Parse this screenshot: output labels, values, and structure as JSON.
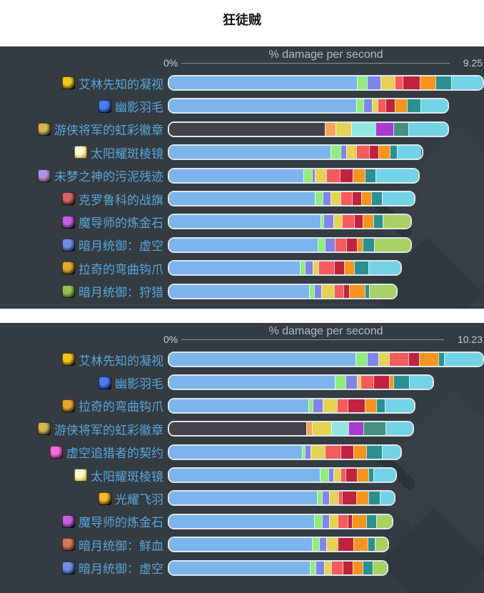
{
  "header": {
    "title": "狂徒贼"
  },
  "palette": {
    "base": "#7cb5ec",
    "gray": "#434348",
    "green": "#90ed7d",
    "peri": "#8085e9",
    "khaki": "#e4d354",
    "salmon": "#f45b5b",
    "crimson": "#c1233f",
    "orange": "#f7941d",
    "porange": "#f7a35c",
    "teal": "#2b908f",
    "sage": "#45917e",
    "cyan": "#74d2e7",
    "mint": "#91e8e1",
    "magenta": "#a83bd0",
    "ygreen": "#a8d164"
  },
  "colors": {
    "panel_bg": "#343b41",
    "label_text": "#57a5dc",
    "chart_title": "#b6bcbf",
    "axis_label": "#c6cbce",
    "axis_line": "#8b9297",
    "bar_outline": "#dde7ee",
    "page_title": "#141414"
  },
  "chart_data": [
    {
      "type": "bar",
      "orientation": "horizontal",
      "stacked": true,
      "title": "% damage per second",
      "axis_min_label": "0%",
      "axis_max_label": "9.25",
      "xlim": [
        0,
        9.25
      ],
      "categories": [
        "艾林先知的凝视",
        "幽影羽毛",
        "游侠将军的虹彩徽章",
        "太阳耀斑棱镜",
        "未梦之神的污泥残迹",
        "克罗鲁科的战旗",
        "魔导师的炼金石",
        "暗月统御：虚空",
        "拉奇的弯曲钩爪",
        "暗月统御：狩猎"
      ],
      "values": [
        9.25,
        8.23,
        8.22,
        7.46,
        7.36,
        7.25,
        7.15,
        7.14,
        6.85,
        6.73
      ],
      "icons": [
        {
          "name": "gold-eye-swirl-icon",
          "fg": "#f2c51d",
          "bg": "#17120a"
        },
        {
          "name": "blue-feather-icon",
          "fg": "#4a7df0",
          "bg": "#0a1038"
        },
        {
          "name": "gold-badge-icon",
          "fg": "#d8b84e",
          "bg": "#15191d"
        },
        {
          "name": "sun-prism-icon",
          "fg": "#fdf6cf",
          "bg": "#c8a52e"
        },
        {
          "name": "sludge-relic-icon",
          "fg": "#b292e2",
          "bg": "#3a2c14"
        },
        {
          "name": "war-banner-icon",
          "fg": "#d4656a",
          "bg": "#201012"
        },
        {
          "name": "alchemist-stone-icon",
          "fg": "#c45fe0",
          "bg": "#140b1c"
        },
        {
          "name": "darkmoon-void-card-icon",
          "fg": "#6d8fe8",
          "bg": "#0d1530"
        },
        {
          "name": "gold-hook-icon",
          "fg": "#e2a92c",
          "bg": "#1a1208"
        },
        {
          "name": "darkmoon-hunt-card-icon",
          "fg": "#97c04e",
          "bg": "#1c260e"
        }
      ],
      "bars": [
        {
          "segments": [
            [
              "base",
              59.8
            ],
            [
              "green",
              3.2
            ],
            [
              "peri",
              4.5
            ],
            [
              "khaki",
              4.5
            ],
            [
              "salmon",
              2.5
            ],
            [
              "crimson",
              5.4
            ],
            [
              "orange",
              5.0
            ],
            [
              "teal",
              5.0
            ],
            [
              "cyan",
              10.1
            ]
          ]
        },
        {
          "segments": [
            [
              "base",
              59.8
            ],
            [
              "green",
              2.3
            ],
            [
              "peri",
              2.6
            ],
            [
              "khaki",
              1.8
            ],
            [
              "salmon",
              2.7
            ],
            [
              "crimson",
              2.9
            ],
            [
              "orange",
              3.8
            ],
            [
              "teal",
              4.5
            ],
            [
              "cyan",
              8.6
            ]
          ]
        },
        {
          "segments": [
            [
              "gray",
              49.7
            ],
            [
              "porange",
              3.4
            ],
            [
              "khaki",
              5.0
            ],
            [
              "mint",
              7.9
            ],
            [
              "magenta",
              5.6
            ],
            [
              "sage",
              4.7
            ],
            [
              "cyan",
              12.6
            ]
          ]
        },
        {
          "segments": [
            [
              "base",
              51.7
            ],
            [
              "green",
              3.2
            ],
            [
              "peri",
              1.8
            ],
            [
              "khaki",
              3.2
            ],
            [
              "salmon",
              4.1
            ],
            [
              "crimson",
              2.9
            ],
            [
              "orange",
              3.6
            ],
            [
              "teal",
              2.3
            ],
            [
              "cyan",
              7.9
            ]
          ]
        },
        {
          "segments": [
            [
              "base",
              42.9
            ],
            [
              "green",
              2.7
            ],
            [
              "peri",
              0.9
            ],
            [
              "khaki",
              3.8
            ],
            [
              "salmon",
              4.3
            ],
            [
              "crimson",
              4.1
            ],
            [
              "orange",
              3.8
            ],
            [
              "teal",
              3.6
            ],
            [
              "cyan",
              13.5
            ]
          ]
        },
        {
          "segments": [
            [
              "base",
              46.7
            ],
            [
              "green",
              2.3
            ],
            [
              "peri",
              2.7
            ],
            [
              "khaki",
              3.2
            ],
            [
              "salmon",
              3.6
            ],
            [
              "crimson",
              2.9
            ],
            [
              "orange",
              3.2
            ],
            [
              "teal",
              3.4
            ],
            [
              "cyan",
              10.4
            ]
          ]
        },
        {
          "segments": [
            [
              "base",
              48.5
            ],
            [
              "green",
              0.9
            ],
            [
              "peri",
              3.2
            ],
            [
              "khaki",
              2.7
            ],
            [
              "salmon",
              3.8
            ],
            [
              "crimson",
              2.9
            ],
            [
              "orange",
              3.4
            ],
            [
              "teal",
              2.9
            ],
            [
              "ygreen",
              9.0
            ]
          ]
        },
        {
          "segments": [
            [
              "base",
              47.6
            ],
            [
              "green",
              2.3
            ],
            [
              "peri",
              3.2
            ],
            [
              "salmon",
              3.6
            ],
            [
              "crimson",
              3.4
            ],
            [
              "orange",
              1.8
            ],
            [
              "teal",
              3.6
            ],
            [
              "ygreen",
              11.7
            ]
          ]
        },
        {
          "segments": [
            [
              "base",
              41.8
            ],
            [
              "green",
              1.6
            ],
            [
              "peri",
              2.5
            ],
            [
              "khaki",
              1.8
            ],
            [
              "salmon",
              5.0
            ],
            [
              "crimson",
              3.2
            ],
            [
              "orange",
              3.4
            ],
            [
              "teal",
              4.5
            ],
            [
              "cyan",
              10.2
            ]
          ]
        },
        {
          "segments": [
            [
              "base",
              44.9
            ],
            [
              "green",
              1.4
            ],
            [
              "peri",
              2.3
            ],
            [
              "khaki",
              4.1
            ],
            [
              "salmon",
              3.2
            ],
            [
              "crimson",
              1.8
            ],
            [
              "orange",
              5.0
            ],
            [
              "teal",
              1.4
            ],
            [
              "ygreen",
              8.6
            ]
          ]
        }
      ]
    },
    {
      "type": "bar",
      "orientation": "horizontal",
      "stacked": true,
      "title": "% damage per second",
      "axis_min_label": "0%",
      "axis_max_label": "10.23",
      "xlim": [
        0,
        10.23
      ],
      "categories": [
        "艾林先知的凝视",
        "幽影羽毛",
        "拉奇的弯曲钩爪",
        "游侠将军的虹彩徽章",
        "虚空追猎者的契约",
        "太阳耀斑棱镜",
        "光耀飞羽",
        "魔导师的炼金石",
        "暗月统御：鲜血",
        "暗月统御：虚空"
      ],
      "values": [
        10.23,
        8.62,
        8.02,
        7.97,
        7.58,
        7.42,
        7.37,
        7.29,
        7.15,
        7.13
      ],
      "icons": [
        {
          "name": "gold-eye-swirl-icon",
          "fg": "#f2c51d",
          "bg": "#17120a"
        },
        {
          "name": "blue-feather-icon",
          "fg": "#4a7df0",
          "bg": "#0a1038"
        },
        {
          "name": "gold-hook-icon",
          "fg": "#e2a92c",
          "bg": "#1a1208"
        },
        {
          "name": "gold-badge-icon",
          "fg": "#d8b84e",
          "bg": "#15191d"
        },
        {
          "name": "void-pact-tome-icon",
          "fg": "#ef6fd8",
          "bg": "#471238"
        },
        {
          "name": "sun-prism-icon",
          "fg": "#fdf6cf",
          "bg": "#c8a52e"
        },
        {
          "name": "radiant-feather-icon",
          "fg": "#f4b82a",
          "bg": "#140d04"
        },
        {
          "name": "alchemist-stone-icon",
          "fg": "#c45fe0",
          "bg": "#140b1c"
        },
        {
          "name": "darkmoon-blood-card-icon",
          "fg": "#d07a5a",
          "bg": "#3a1410"
        },
        {
          "name": "darkmoon-void-card-icon",
          "fg": "#6d8fe8",
          "bg": "#0d1530"
        }
      ],
      "bars": [
        {
          "segments": [
            [
              "base",
              59.4
            ],
            [
              "green",
              3.8
            ],
            [
              "peri",
              3.6
            ],
            [
              "khaki",
              3.4
            ],
            [
              "salmon",
              6.1
            ],
            [
              "crimson",
              3.4
            ],
            [
              "orange",
              6.1
            ],
            [
              "teal",
              1.8
            ],
            [
              "cyan",
              12.4
            ]
          ]
        },
        {
          "segments": [
            [
              "base",
              53.0
            ],
            [
              "green",
              3.4
            ],
            [
              "peri",
              3.6
            ],
            [
              "khaki",
              1.1
            ],
            [
              "salmon",
              4.1
            ],
            [
              "crimson",
              5.0
            ],
            [
              "orange",
              1.4
            ],
            [
              "teal",
              5.0
            ],
            [
              "cyan",
              7.7
            ]
          ]
        },
        {
          "segments": [
            [
              "base",
              44.5
            ],
            [
              "green",
              1.4
            ],
            [
              "peri",
              3.2
            ],
            [
              "khaki",
              4.5
            ],
            [
              "salmon",
              3.6
            ],
            [
              "crimson",
              5.4
            ],
            [
              "orange",
              3.6
            ],
            [
              "teal",
              2.7
            ],
            [
              "cyan",
              9.5
            ]
          ]
        },
        {
          "segments": [
            [
              "gray",
              43.9
            ],
            [
              "porange",
              1.8
            ],
            [
              "khaki",
              6.1
            ],
            [
              "mint",
              5.6
            ],
            [
              "magenta",
              4.7
            ],
            [
              "sage",
              7.2
            ],
            [
              "cyan",
              8.6
            ]
          ]
        },
        {
          "segments": [
            [
              "base",
              42.4
            ],
            [
              "green",
              1.1
            ],
            [
              "peri",
              1.8
            ],
            [
              "khaki",
              4.5
            ],
            [
              "salmon",
              5.0
            ],
            [
              "crimson",
              4.1
            ],
            [
              "orange",
              4.1
            ],
            [
              "teal",
              5.0
            ],
            [
              "cyan",
              6.1
            ]
          ]
        },
        {
          "segments": [
            [
              "base",
              48.3
            ],
            [
              "green",
              2.7
            ],
            [
              "peri",
              1.6
            ],
            [
              "khaki",
              2.3
            ],
            [
              "salmon",
              1.6
            ],
            [
              "crimson",
              3.6
            ],
            [
              "orange",
              3.6
            ],
            [
              "teal",
              1.6
            ],
            [
              "cyan",
              7.2
            ]
          ]
        },
        {
          "segments": [
            [
              "base",
              47.4
            ],
            [
              "green",
              1.6
            ],
            [
              "peri",
              2.3
            ],
            [
              "khaki",
              2.9
            ],
            [
              "salmon",
              1.1
            ],
            [
              "crimson",
              4.7
            ],
            [
              "orange",
              3.8
            ],
            [
              "teal",
              3.6
            ],
            [
              "cyan",
              4.6
            ]
          ]
        },
        {
          "segments": [
            [
              "base",
              46.5
            ],
            [
              "green",
              2.5
            ],
            [
              "peri",
              2.3
            ],
            [
              "khaki",
              2.7
            ],
            [
              "salmon",
              3.2
            ],
            [
              "crimson",
              1.4
            ],
            [
              "orange",
              4.5
            ],
            [
              "teal",
              3.2
            ],
            [
              "ygreen",
              5.0
            ]
          ]
        },
        {
          "segments": [
            [
              "base",
              45.8
            ],
            [
              "green",
              2.3
            ],
            [
              "peri",
              2.3
            ],
            [
              "khaki",
              3.6
            ],
            [
              "crimson",
              5.0
            ],
            [
              "orange",
              4.5
            ],
            [
              "teal",
              2.3
            ],
            [
              "ygreen",
              4.1
            ]
          ]
        },
        {
          "segments": [
            [
              "base",
              45.0
            ],
            [
              "green",
              2.0
            ],
            [
              "peri",
              2.7
            ],
            [
              "khaki",
              2.3
            ],
            [
              "salmon",
              3.6
            ],
            [
              "crimson",
              3.2
            ],
            [
              "orange",
              3.2
            ],
            [
              "teal",
              3.2
            ],
            [
              "ygreen",
              4.5
            ]
          ]
        }
      ]
    }
  ]
}
